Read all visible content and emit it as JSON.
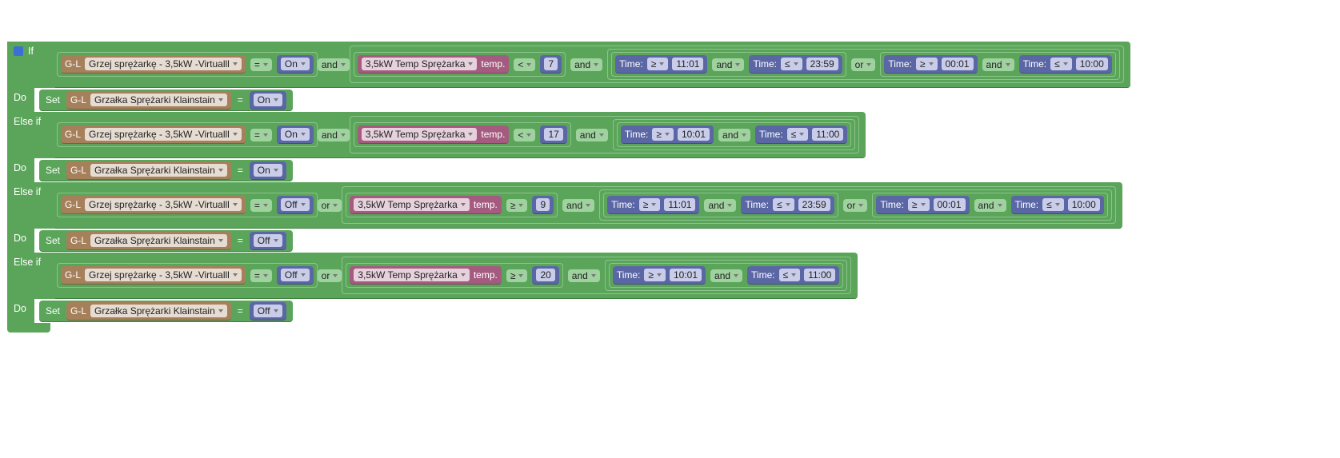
{
  "branches": [
    {
      "keyword": "If",
      "condition": {
        "compare": {
          "device": {
            "prefix": "G-L",
            "name": "Grzej sprężarkę - 3,5kW -Virtualll"
          },
          "operator": "=",
          "state": "On"
        },
        "join": "and",
        "rest": {
          "sensor": {
            "name": "3,5kW Temp Sprężarka",
            "field": "temp.",
            "operator": "<",
            "value": 7
          },
          "join": "and",
          "time": {
            "join": "or",
            "ranges": [
              {
                "from": {
                  "label": "Time:",
                  "operator": "≥",
                  "value": "11:01"
                },
                "join": "and",
                "to": {
                  "label": "Time:",
                  "operator": "≤",
                  "value": "23:59"
                }
              },
              {
                "from": {
                  "label": "Time:",
                  "operator": "≥",
                  "value": "00:01"
                },
                "join": "and",
                "to": {
                  "label": "Time:",
                  "operator": "≤",
                  "value": "10:00"
                }
              }
            ]
          }
        }
      },
      "do": {
        "keyword": "Do",
        "action": "Set",
        "device": {
          "prefix": "G-L",
          "name": "Grzałka Sprężarki Klainstain"
        },
        "operator": "=",
        "state": "On"
      }
    },
    {
      "keyword": "Else if",
      "condition": {
        "compare": {
          "device": {
            "prefix": "G-L",
            "name": "Grzej sprężarkę - 3,5kW -Virtualll"
          },
          "operator": "=",
          "state": "On"
        },
        "join": "and",
        "rest": {
          "sensor": {
            "name": "3,5kW Temp Sprężarka",
            "field": "temp.",
            "operator": "<",
            "value": 17
          },
          "join": "and",
          "time": {
            "ranges": [
              {
                "from": {
                  "label": "Time:",
                  "operator": "≥",
                  "value": "10:01"
                },
                "join": "and",
                "to": {
                  "label": "Time:",
                  "operator": "≤",
                  "value": "11:00"
                }
              }
            ]
          }
        }
      },
      "do": {
        "keyword": "Do",
        "action": "Set",
        "device": {
          "prefix": "G-L",
          "name": "Grzałka Sprężarki Klainstain"
        },
        "operator": "=",
        "state": "On"
      }
    },
    {
      "keyword": "Else if",
      "condition": {
        "compare": {
          "device": {
            "prefix": "G-L",
            "name": "Grzej sprężarkę - 3,5kW -Virtualll"
          },
          "operator": "=",
          "state": "Off"
        },
        "join": "or",
        "rest": {
          "sensor": {
            "name": "3,5kW Temp Sprężarka",
            "field": "temp.",
            "operator": "≥",
            "value": 9
          },
          "join": "and",
          "time": {
            "join": "or",
            "ranges": [
              {
                "from": {
                  "label": "Time:",
                  "operator": "≥",
                  "value": "11:01"
                },
                "join": "and",
                "to": {
                  "label": "Time:",
                  "operator": "≤",
                  "value": "23:59"
                }
              },
              {
                "from": {
                  "label": "Time:",
                  "operator": "≥",
                  "value": "00:01"
                },
                "join": "and",
                "to": {
                  "label": "Time:",
                  "operator": "≤",
                  "value": "10:00"
                }
              }
            ]
          }
        }
      },
      "do": {
        "keyword": "Do",
        "action": "Set",
        "device": {
          "prefix": "G-L",
          "name": "Grzałka Sprężarki Klainstain"
        },
        "operator": "=",
        "state": "Off"
      }
    },
    {
      "keyword": "Else if",
      "condition": {
        "compare": {
          "device": {
            "prefix": "G-L",
            "name": "Grzej sprężarkę - 3,5kW -Virtualll"
          },
          "operator": "=",
          "state": "Off"
        },
        "join": "or",
        "rest": {
          "sensor": {
            "name": "3,5kW Temp Sprężarka",
            "field": "temp.",
            "operator": "≥",
            "value": 20
          },
          "join": "and",
          "time": {
            "ranges": [
              {
                "from": {
                  "label": "Time:",
                  "operator": "≥",
                  "value": "10:01"
                },
                "join": "and",
                "to": {
                  "label": "Time:",
                  "operator": "≤",
                  "value": "11:00"
                }
              }
            ]
          }
        }
      },
      "do": {
        "keyword": "Do",
        "action": "Set",
        "device": {
          "prefix": "G-L",
          "name": "Grzałka Sprężarki Klainstain"
        },
        "operator": "=",
        "state": "Off"
      }
    }
  ]
}
